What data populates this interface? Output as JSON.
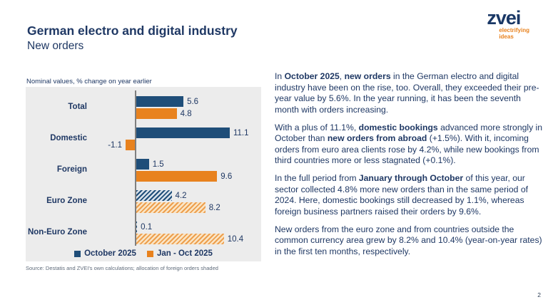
{
  "header": {
    "title": "German electro and digital industry",
    "subtitle": "New orders"
  },
  "logo": {
    "brand": "zvei",
    "tagline_line1": "electrifying",
    "tagline_line2": "ideas"
  },
  "chart_data": {
    "type": "bar",
    "orientation": "horizontal",
    "note": "Nominal values, % change on year earlier",
    "categories": [
      "Total",
      "Domestic",
      "Foreign",
      "Euro Zone",
      "Non-Euro Zone"
    ],
    "series": [
      {
        "name": "October 2025",
        "color": "#1F4E79",
        "values": [
          5.6,
          11.1,
          1.5,
          4.2,
          0.1
        ]
      },
      {
        "name": "Jan - Oct 2025",
        "color": "#E8821E",
        "values": [
          4.8,
          -1.1,
          9.6,
          8.2,
          10.4
        ]
      }
    ],
    "hatched_categories": [
      "Euro Zone",
      "Non-Euro Zone"
    ],
    "value_labels": true,
    "xlim": [
      -2.5,
      13
    ],
    "grid": false,
    "legend_position": "bottom",
    "plot_background": "#ECECEC",
    "source": "Source: Destatis and ZVEI's own calculations; allocation of foreign orders shaded"
  },
  "article": {
    "paragraphs": [
      [
        {
          "t": "In "
        },
        {
          "t": "October 2025",
          "b": true
        },
        {
          "t": ", "
        },
        {
          "t": "new orders",
          "b": true
        },
        {
          "t": " in the German electro and digital industry have been on the rise, too. Overall, they exceeded their pre-year value by 5.6%. In the year running, it has been the seventh month with orders increasing."
        }
      ],
      [
        {
          "t": "With a plus of 11.1%, "
        },
        {
          "t": "domestic bookings",
          "b": true
        },
        {
          "t": " advanced more strongly in October than "
        },
        {
          "t": "new orders from abroad",
          "b": true
        },
        {
          "t": " (+1.5%). With it, incoming orders from euro area clients rose by 4.2%, while new bookings from third countries more or less stagnated (+0.1%)."
        }
      ],
      [
        {
          "t": "In the full period from "
        },
        {
          "t": "January through October",
          "b": true
        },
        {
          "t": " of this year, our sector collected 4.8% more new orders than in the same period of 2024. Here, domestic bookings still decreased by 1.1%, whereas foreign business partners raised their orders by 9.6%."
        }
      ],
      [
        {
          "t": "New orders from the euro zone and from countries outside the common currency area grew by 8.2% and 10.4% (year-on-year rates) in the first ten months, respectively."
        }
      ]
    ]
  },
  "page_number": "2",
  "colors": {
    "text_navy": "#1F3864",
    "bar_blue": "#1F4E79",
    "bar_orange": "#E8821E",
    "plot_background": "#ECECEC",
    "axis_line": "#7F7F7F"
  }
}
